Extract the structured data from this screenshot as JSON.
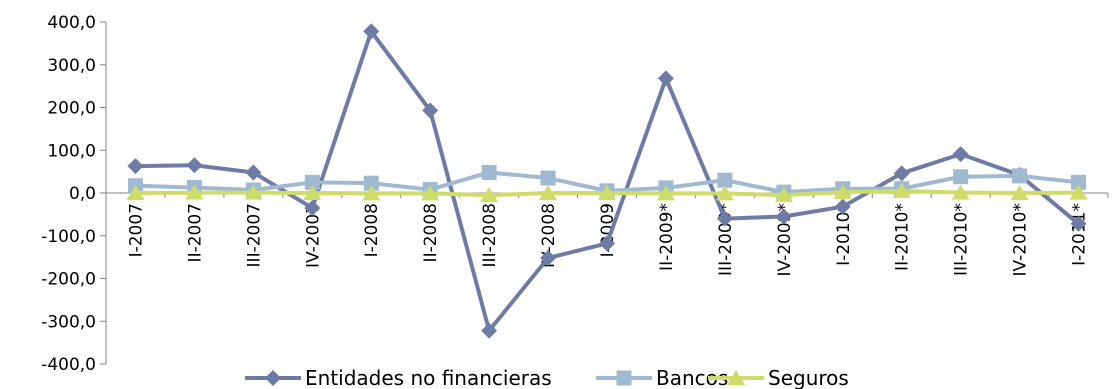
{
  "chart_data": {
    "type": "line",
    "categories": [
      "I-2007",
      "II-2007",
      "III-2007",
      "IV-2007",
      "I-2008",
      "II-2008",
      "III-2008",
      "IV-2008",
      "I-2009",
      "II-2009*",
      "III-2009*",
      "IV-2009*",
      "I-2010*",
      "II-2010*",
      "III-2010*",
      "IV-2010*",
      "I-2011*"
    ],
    "y_ticks": [
      "400,0",
      "300,0",
      "200,0",
      "100,0",
      "0,0",
      "-100,0",
      "-200,0",
      "-300,0",
      "-400,0"
    ],
    "ylim": [
      -400,
      400
    ],
    "grid": false,
    "legend_position": "bottom",
    "series": [
      {
        "name": "Entidades no financieras",
        "color": "#6E7BA4",
        "marker": "diamond",
        "values": [
          63,
          65,
          48,
          -35,
          378,
          193,
          -322,
          -152,
          -118,
          268,
          -60,
          -55,
          -32,
          46,
          91,
          42,
          -72
        ]
      },
      {
        "name": "Bancos",
        "color": "#9FBAD0",
        "marker": "square",
        "values": [
          17,
          13,
          7,
          25,
          23,
          8,
          48,
          35,
          5,
          12,
          30,
          2,
          10,
          10,
          38,
          40,
          25
        ]
      },
      {
        "name": "Seguros",
        "color": "#CEDC6A",
        "marker": "triangle",
        "values": [
          0,
          1,
          1,
          0,
          -1,
          -1,
          -5,
          0,
          0,
          -1,
          -1,
          -5,
          2,
          5,
          1,
          0,
          1
        ]
      }
    ]
  }
}
